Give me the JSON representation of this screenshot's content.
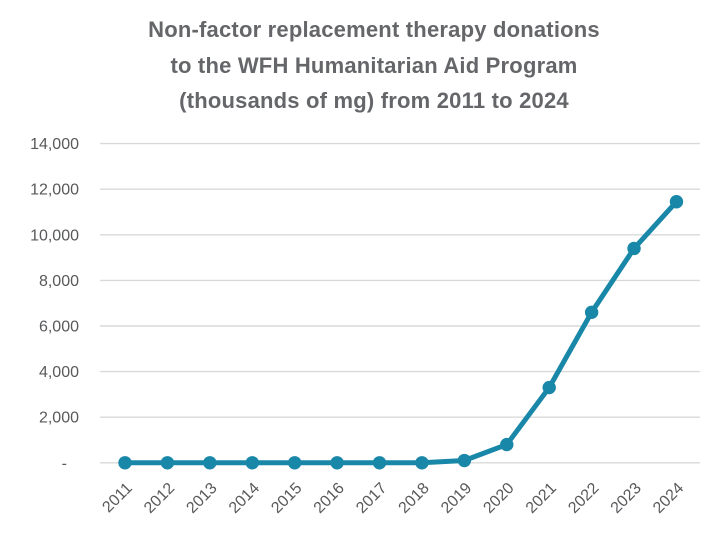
{
  "chart": {
    "title_lines": [
      "Non-factor replacement therapy donations",
      "to the WFH Humanitarian Aid Program",
      "(thousands of mg) from 2011 to 2024"
    ]
  },
  "chart_data": {
    "type": "line",
    "title": "Non-factor replacement therapy donations to the WFH Humanitarian Aid Program (thousands of mg) from 2011 to 2024",
    "categories": [
      "2011",
      "2012",
      "2013",
      "2014",
      "2015",
      "2016",
      "2017",
      "2018",
      "2019",
      "2020",
      "2021",
      "2022",
      "2023",
      "2024"
    ],
    "series": [
      {
        "name": "Non-factor replacement therapy donations (thousands of mg)",
        "values": [
          0,
          0,
          0,
          0,
          0,
          0,
          0,
          0,
          100,
          800,
          3300,
          6600,
          9400,
          11450
        ]
      }
    ],
    "xlabel": "",
    "ylabel": "",
    "ylim": [
      0,
      14000
    ],
    "y_tick_interval": 2000,
    "y_tick_labels": [
      "-",
      "2,000",
      "4,000",
      "6,000",
      "8,000",
      "10,000",
      "12,000",
      "14,000"
    ],
    "grid": "horizontal",
    "legend": "none",
    "marker": "circle",
    "colors": {
      "line": "#1987a8",
      "marker": "#1987a8",
      "gridline": "#d9d9d9",
      "axis_text": "#58595b",
      "title_text": "#656669"
    }
  }
}
